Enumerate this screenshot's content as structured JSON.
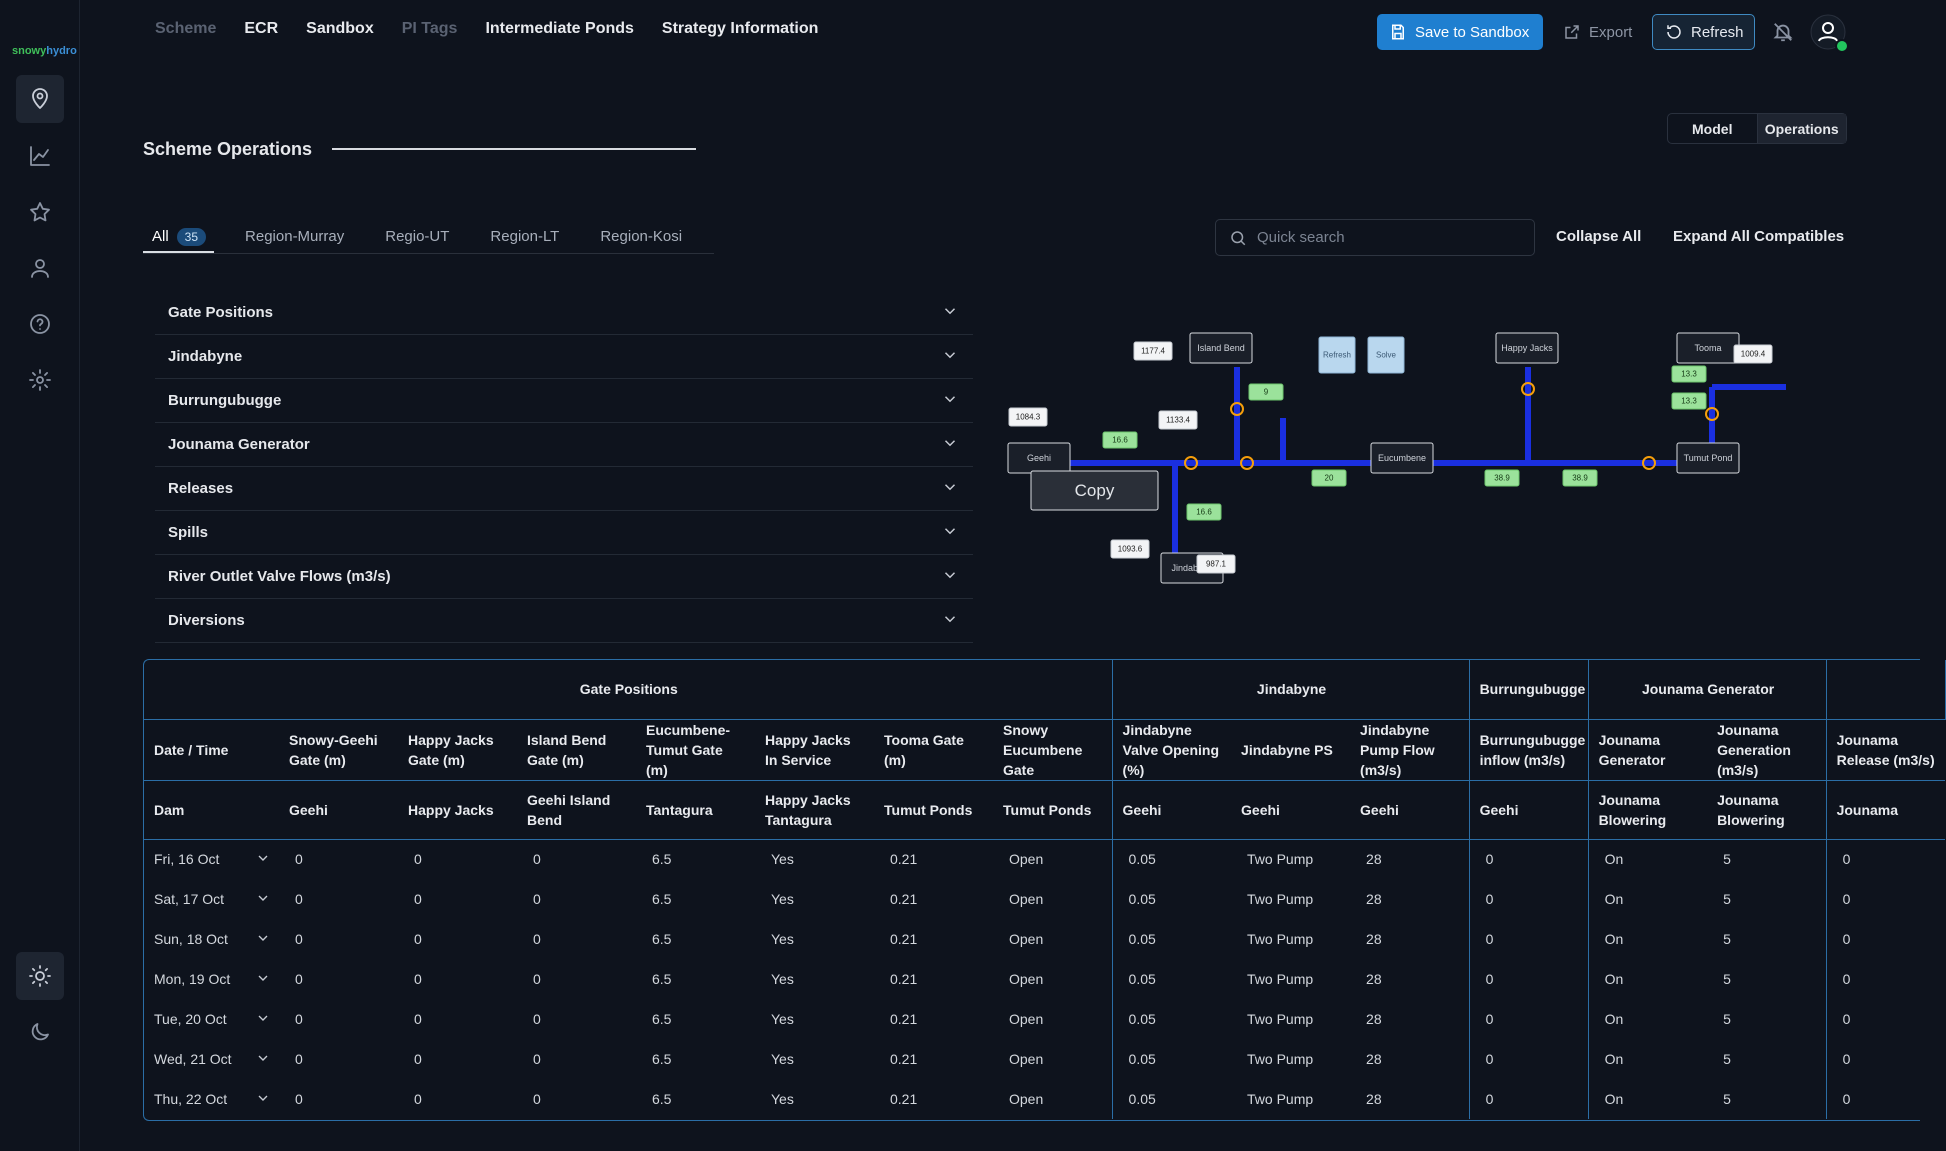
{
  "brand": [
    "snowy",
    "hydro"
  ],
  "nav": [
    "Scheme",
    "ECR",
    "Sandbox",
    "PI Tags",
    "Intermediate Ponds",
    "Strategy Information"
  ],
  "actions": {
    "save": "Save to Sandbox",
    "export": "Export",
    "refresh": "Refresh"
  },
  "view_toggle": [
    "Model",
    "Operations"
  ],
  "page_title": "Scheme Operations",
  "tabs": [
    {
      "label": "All",
      "count": 35
    },
    {
      "label": "Region-Murray"
    },
    {
      "label": "Regio-UT"
    },
    {
      "label": "Region-LT"
    },
    {
      "label": "Region-Kosi"
    }
  ],
  "search_placeholder": "Quick search",
  "collapse_all": "Collapse All",
  "expand_all": "Expand All Compatibles",
  "sections": [
    "Gate Positions",
    "Jindabyne",
    "Burrungubugge",
    "Jounama Generator",
    "Releases",
    "Spills",
    "River Outlet Valve Flows (m3/s)",
    "Diversions"
  ],
  "diagram": {
    "nodes": [
      "Island Bend",
      "Happy Jacks",
      "Tooma",
      "Geehi",
      "Eucumbene",
      "Tumut Pond",
      "Jindabyne"
    ],
    "buttons": [
      "Refresh",
      "Solve"
    ],
    "copy": "Copy",
    "levels": [
      1177.4,
      1084.3,
      1133.4,
      1009.4,
      1093.6,
      987.1
    ],
    "flows": [
      9,
      16.6,
      20,
      38.9,
      38.9,
      13.3,
      13.3,
      16.6
    ]
  },
  "table": {
    "groups": [
      "Gate Positions",
      "Jindabyne",
      "Burrungubugge",
      "Jounama Generator"
    ],
    "columns": [
      {
        "header": "Date / Time",
        "dam": "Dam"
      },
      {
        "header": "Snowy-Geehi Gate (m)",
        "dam": "Geehi"
      },
      {
        "header": "Happy Jacks Gate (m)",
        "dam": "Happy Jacks"
      },
      {
        "header": "Island Bend Gate (m)",
        "dam": "Geehi Island Bend"
      },
      {
        "header": "Eucumbene-Tumut Gate (m)",
        "dam": "Tantagura"
      },
      {
        "header": "Happy Jacks In Service",
        "dam": "Happy Jacks Tantagura"
      },
      {
        "header": "Tooma Gate (m)",
        "dam": "Tumut Ponds"
      },
      {
        "header": "Snowy Eucumbene Gate",
        "dam": "Tumut Ponds"
      },
      {
        "header": "Jindabyne Valve Opening (%)",
        "dam": "Geehi"
      },
      {
        "header": "Jindabyne PS",
        "dam": "Geehi"
      },
      {
        "header": "Jindabyne Pump Flow (m3/s)",
        "dam": "Geehi"
      },
      {
        "header": "Burrungubugge inflow (m3/s)",
        "dam": "Geehi"
      },
      {
        "header": "Jounama Generator",
        "dam": "Jounama Blowering"
      },
      {
        "header": "Jounama Generation (m3/s)",
        "dam": "Jounama Blowering"
      },
      {
        "header": "Jounama Release (m3/s)",
        "dam": "Jounama"
      }
    ],
    "rows": [
      [
        "Fri, 16 Oct",
        0,
        0,
        0,
        6.5,
        "Yes",
        0.21,
        "Open",
        0.05,
        "Two Pump",
        28,
        0,
        "On",
        5,
        0
      ],
      [
        "Sat, 17 Oct",
        0,
        0,
        0,
        6.5,
        "Yes",
        0.21,
        "Open",
        0.05,
        "Two Pump",
        28,
        0,
        "On",
        5,
        0
      ],
      [
        "Sun, 18 Oct",
        0,
        0,
        0,
        6.5,
        "Yes",
        0.21,
        "Open",
        0.05,
        "Two Pump",
        28,
        0,
        "On",
        5,
        0
      ],
      [
        "Mon, 19 Oct",
        0,
        0,
        0,
        6.5,
        "Yes",
        0.21,
        "Open",
        0.05,
        "Two Pump",
        28,
        0,
        "On",
        5,
        0
      ],
      [
        "Tue, 20 Oct",
        0,
        0,
        0,
        6.5,
        "Yes",
        0.21,
        "Open",
        0.05,
        "Two Pump",
        28,
        0,
        "On",
        5,
        0
      ],
      [
        "Wed, 21 Oct",
        0,
        0,
        0,
        6.5,
        "Yes",
        0.21,
        "Open",
        0.05,
        "Two Pump",
        28,
        0,
        "On",
        5,
        0
      ],
      [
        "Thu, 22 Oct",
        0,
        0,
        0,
        6.5,
        "Yes",
        0.21,
        "Open",
        0.05,
        "Two Pump",
        28,
        0,
        "On",
        5,
        0
      ]
    ]
  }
}
